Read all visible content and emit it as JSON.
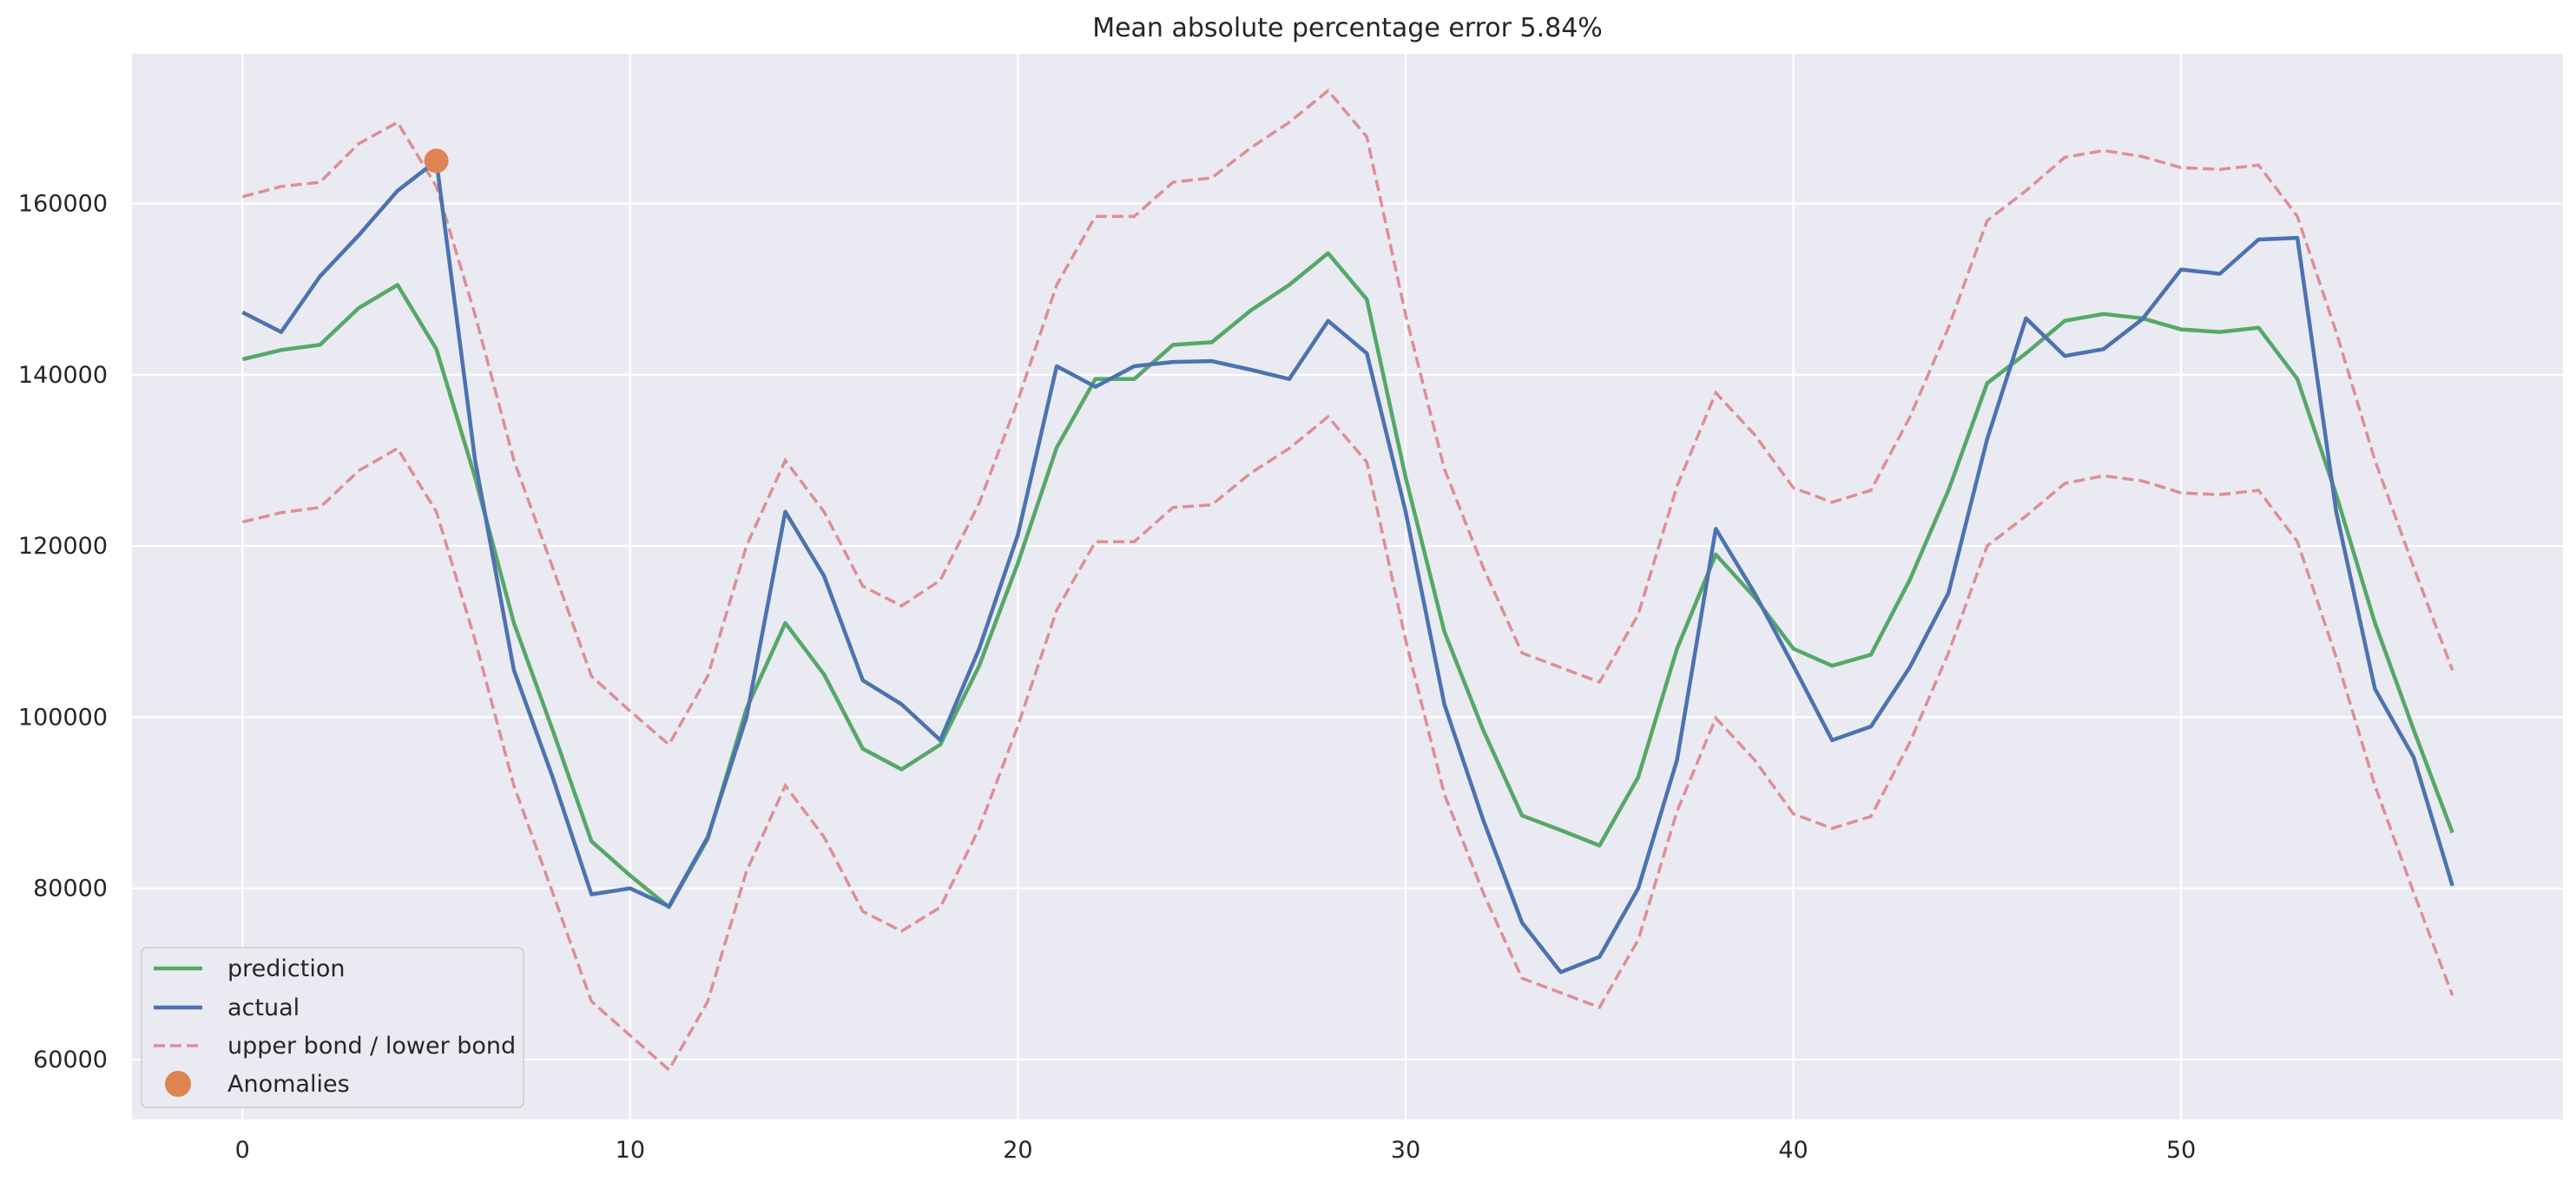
{
  "chart_data": {
    "type": "line",
    "title": "Mean absolute percentage error 5.84%",
    "xlabel": "",
    "ylabel": "",
    "xlim": [
      -2.85,
      59.85
    ],
    "ylim": [
      53000,
      177500
    ],
    "grid": true,
    "legend_position": "lower-left",
    "x_ticks": [
      0,
      10,
      20,
      30,
      40,
      50
    ],
    "y_ticks": [
      60000,
      80000,
      100000,
      120000,
      140000,
      160000
    ],
    "x_tick_labels": [
      "0",
      "10",
      "20",
      "30",
      "40",
      "50"
    ],
    "y_tick_labels": [
      "60000",
      "80000",
      "100000",
      "120000",
      "140000",
      "160000"
    ],
    "colors": {
      "background": "#eaeaf2",
      "grid": "#ffffff",
      "prediction": "#55a868",
      "actual": "#4c72b0",
      "bounds": "#dd8f93",
      "anomaly": "#dd8452"
    },
    "x": [
      0,
      1,
      2,
      3,
      4,
      5,
      6,
      7,
      8,
      9,
      10,
      11,
      12,
      13,
      14,
      15,
      16,
      17,
      18,
      19,
      20,
      21,
      22,
      23,
      24,
      25,
      26,
      27,
      28,
      29,
      30,
      31,
      32,
      33,
      34,
      35,
      36,
      37,
      38,
      39,
      40,
      41,
      42,
      43,
      44,
      45,
      46,
      47,
      48,
      49,
      50,
      51,
      52,
      53,
      54,
      55,
      56,
      57
    ],
    "series": [
      {
        "name": "prediction",
        "style": "solid",
        "values": [
          141800,
          142900,
          143500,
          147800,
          150500,
          143000,
          128000,
          111000,
          98500,
          85500,
          81500,
          77800,
          85800,
          101000,
          111000,
          105000,
          96300,
          93900,
          96800,
          106000,
          118000,
          131500,
          139500,
          139500,
          143500,
          143800,
          147500,
          150500,
          154200,
          148800,
          128000,
          110000,
          98500,
          88500,
          86800,
          85000,
          93000,
          108000,
          119000,
          114000,
          108000,
          106000,
          107300,
          116000,
          126500,
          139000,
          142500,
          146300,
          147100,
          146600,
          145300,
          145000,
          145500,
          139500,
          126000,
          111000,
          98500,
          86500
        ]
      },
      {
        "name": "actual",
        "style": "solid",
        "values": [
          147300,
          145000,
          151500,
          156300,
          161500,
          165000,
          130000,
          105500,
          93000,
          79300,
          80000,
          77900,
          86000,
          100000,
          124000,
          116500,
          104300,
          101500,
          97300,
          108000,
          121300,
          141000,
          138600,
          141000,
          141500,
          141600,
          140600,
          139500,
          146300,
          142500,
          124000,
          101500,
          88000,
          76000,
          70200,
          72000,
          80000,
          95000,
          122000,
          114500,
          106000,
          97300,
          98900,
          105800,
          114500,
          132500,
          146600,
          142200,
          143000,
          146500,
          152300,
          151800,
          155800,
          156000,
          124000,
          103300,
          95300,
          80300
        ]
      },
      {
        "name": "upper bond / lower bond",
        "style": "dashed",
        "upper": [
          160800,
          162000,
          162500,
          167000,
          169500,
          162000,
          147000,
          130000,
          117500,
          104800,
          100700,
          96800,
          104800,
          120000,
          130000,
          124000,
          115300,
          113000,
          116000,
          125000,
          137000,
          150500,
          158500,
          158500,
          162500,
          163000,
          166500,
          169500,
          173200,
          167800,
          147000,
          129000,
          117500,
          107500,
          105800,
          104100,
          112000,
          127000,
          137900,
          133000,
          126800,
          125100,
          126500,
          135000,
          145500,
          158000,
          161500,
          165400,
          166200,
          165500,
          164200,
          164000,
          164500,
          158500,
          145000,
          130000,
          117500,
          105500
        ],
        "lower": [
          122800,
          123900,
          124500,
          128800,
          131400,
          124000,
          109000,
          92000,
          79500,
          66800,
          62800,
          58800,
          66800,
          82000,
          92000,
          86000,
          77300,
          75000,
          77800,
          87000,
          99000,
          112500,
          120500,
          120500,
          124500,
          124800,
          128500,
          131400,
          135100,
          129800,
          109000,
          91000,
          79500,
          69500,
          67800,
          66100,
          74000,
          89000,
          99900,
          95000,
          88700,
          87000,
          88400,
          97000,
          107500,
          120000,
          123500,
          127300,
          128200,
          127600,
          126200,
          126000,
          126500,
          120500,
          107000,
          92000,
          79500,
          67500
        ]
      }
    ],
    "anomalies": {
      "name": "Anomalies",
      "points": [
        {
          "x": 5,
          "y": 165000
        }
      ]
    },
    "legend": [
      "prediction",
      "actual",
      "upper bond / lower bond",
      "Anomalies"
    ]
  }
}
